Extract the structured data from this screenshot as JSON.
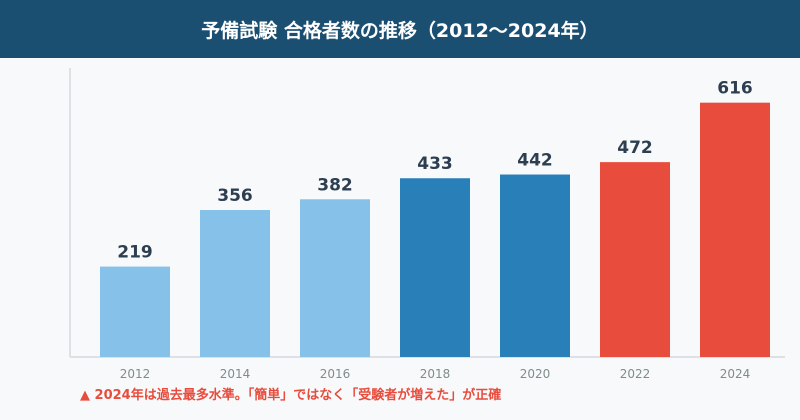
{
  "chart_data": {
    "type": "bar",
    "title": "予備試験 合格者数の推移（2012〜2024年）",
    "categories": [
      "2012",
      "2014",
      "2016",
      "2018",
      "2020",
      "2022",
      "2024"
    ],
    "values": [
      219,
      356,
      382,
      433,
      442,
      472,
      616
    ],
    "colors": [
      "#85c1e9",
      "#85c1e9",
      "#85c1e9",
      "#2980b9",
      "#2980b9",
      "#e74c3c",
      "#e74c3c"
    ],
    "ylim": [
      0,
      700
    ],
    "grid": false,
    "xlabel": "",
    "ylabel": "",
    "annotation": "▲ 2024年は過去最多水準。「簡単」ではなく「受験者が増えた」が正確"
  }
}
